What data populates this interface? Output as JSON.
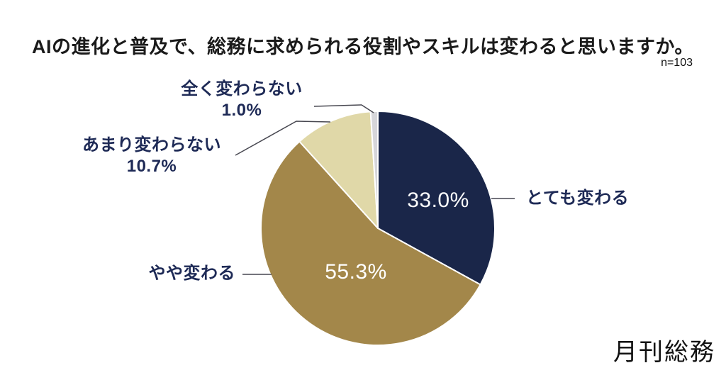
{
  "chart_data": {
    "type": "pie",
    "title": "AIの進化と普及で、総務に求められる役割やスキルは変わると思いますか。",
    "sample_size": 103,
    "sample_size_label": "n=103",
    "start_angle_deg": 0,
    "direction": "clockwise",
    "legend_position": "callout-labels",
    "slices": [
      {
        "label": "とても変わる",
        "value": 33.0,
        "display": "33.0%",
        "color": "#1A2649",
        "percent_label_position": "inside"
      },
      {
        "label": "やや変わる",
        "value": 55.3,
        "display": "55.3%",
        "color": "#A3874A",
        "percent_label_position": "inside"
      },
      {
        "label": "あまり変わらない",
        "value": 10.7,
        "display": "10.7%",
        "color": "#E0D8A8",
        "percent_label_position": "outside"
      },
      {
        "label": "全く変わらない",
        "value": 1.0,
        "display": "1.0%",
        "color": "#D6D6DA",
        "percent_label_position": "outside"
      }
    ],
    "colors": {
      "background": "#FFFFFF",
      "title_text": "#1A1A1A",
      "outside_label_text": "#1E2A56",
      "inside_label_text": "#FFFFFF",
      "leader_line": "#474750"
    }
  },
  "footer": {
    "logo_text": "月刊総務"
  }
}
